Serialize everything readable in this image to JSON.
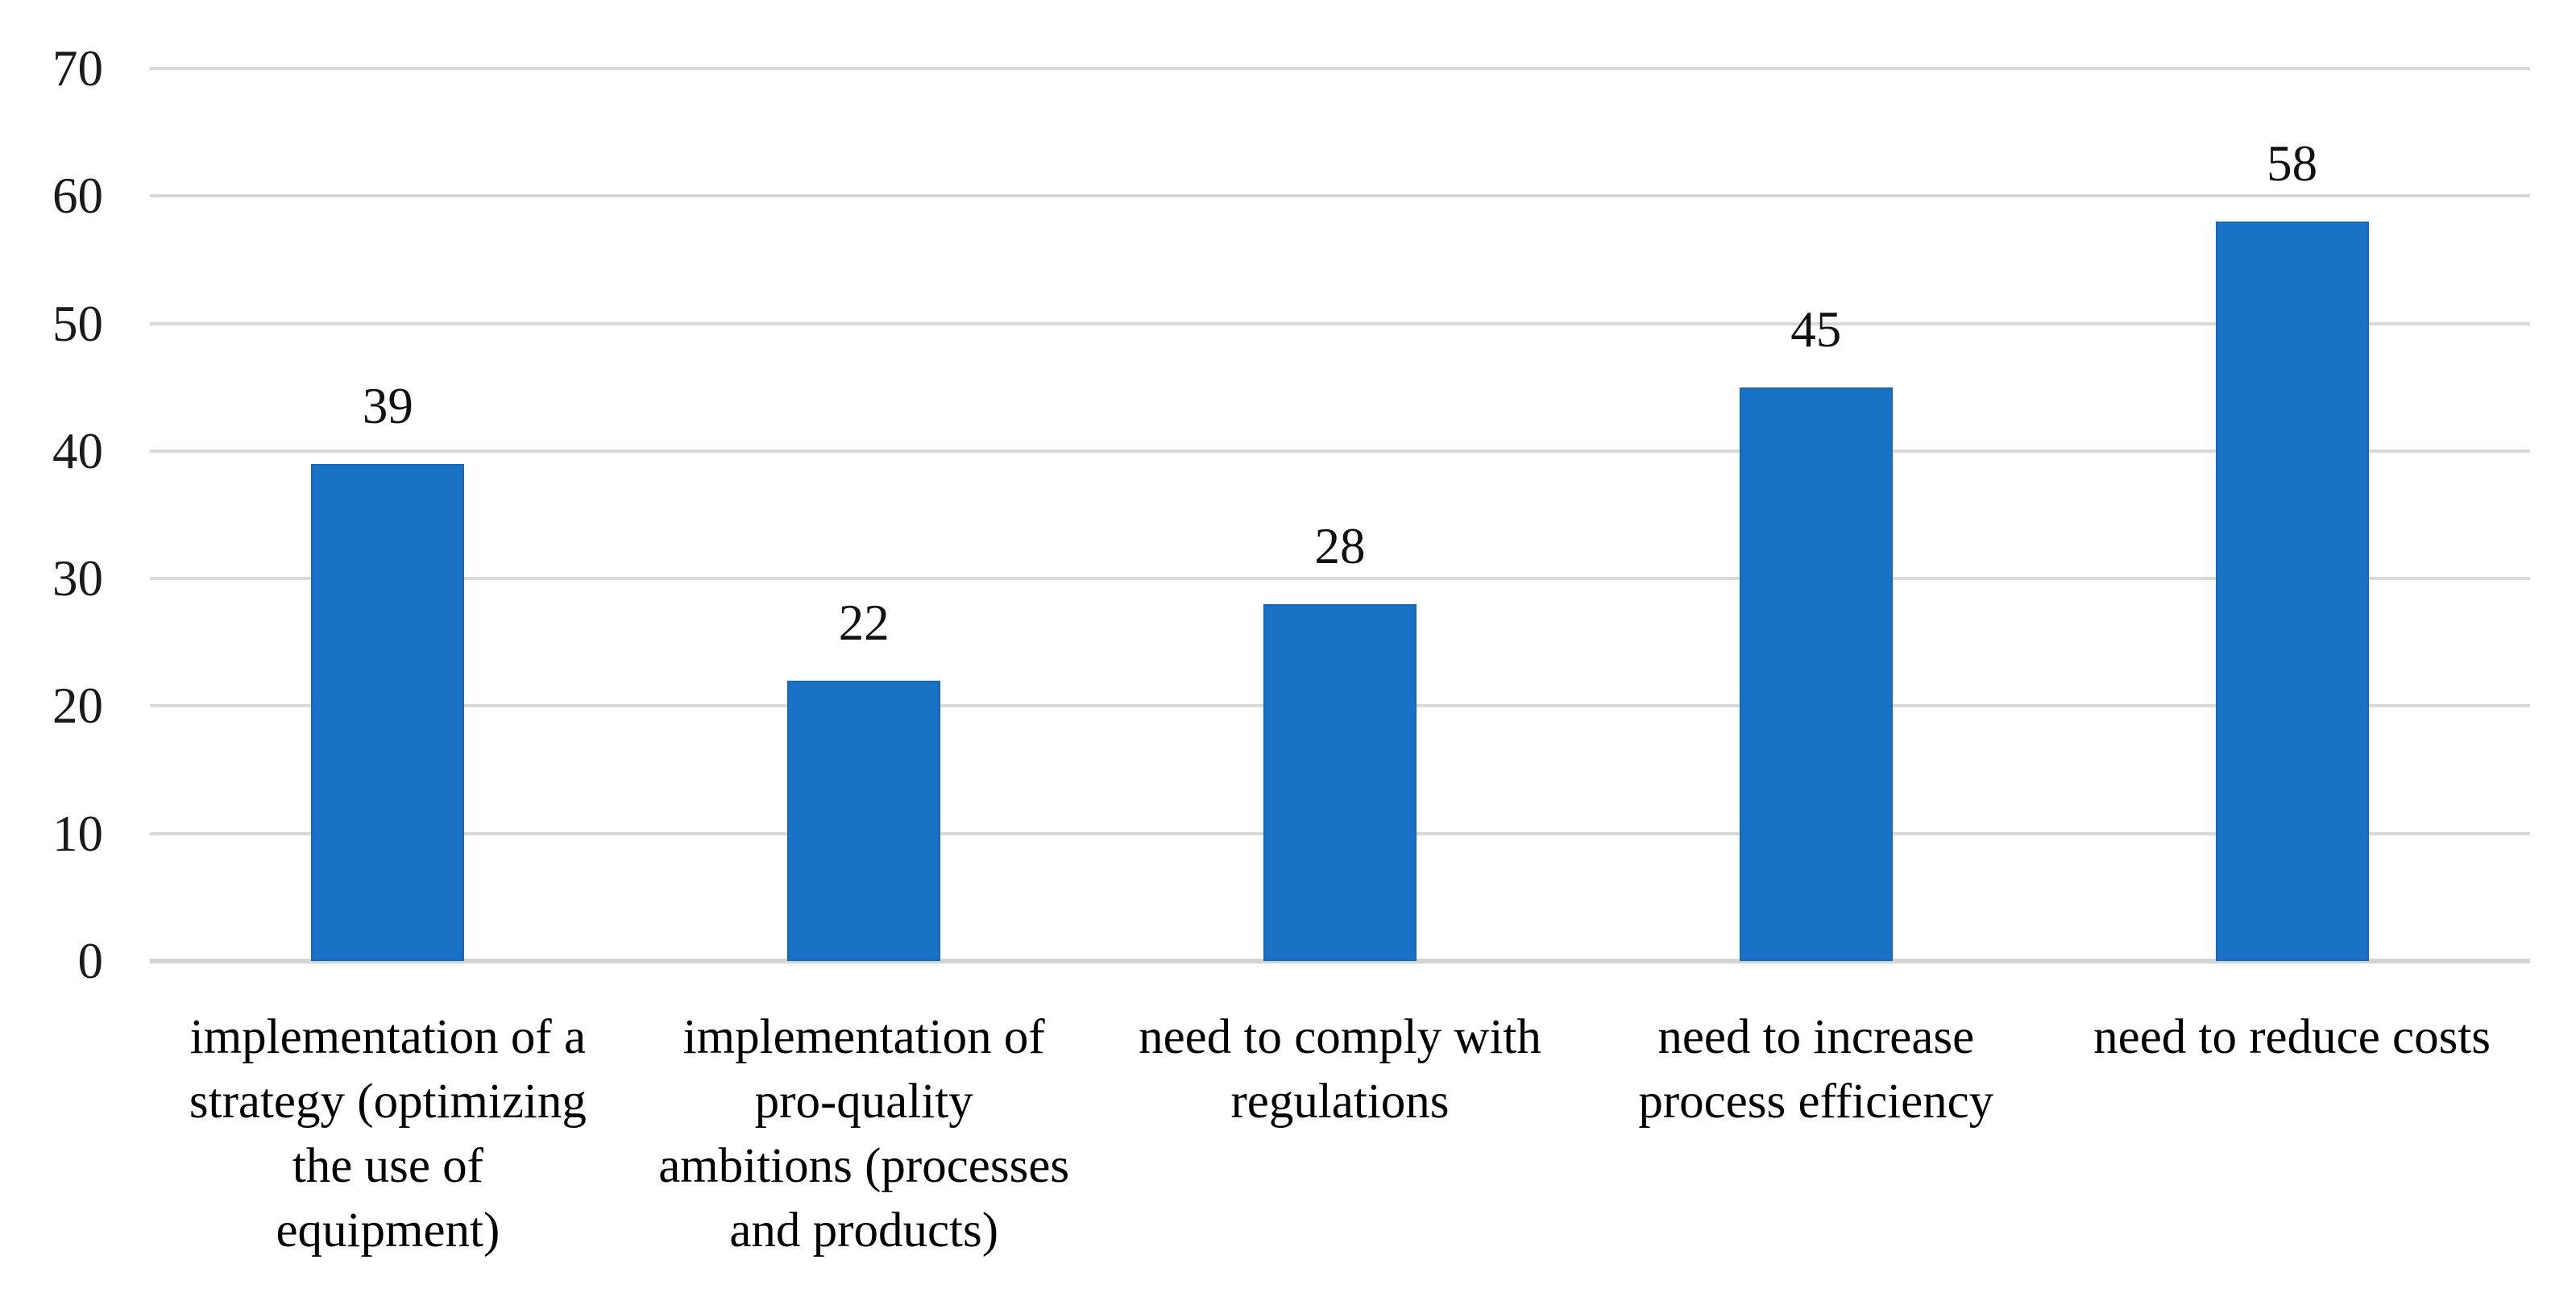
{
  "chart_data": {
    "type": "bar",
    "title": "",
    "xlabel": "",
    "ylabel": "",
    "categories": [
      "implementation of a strategy (optimizing the use of equipment)",
      "implementation of pro-quality ambitions (processes and products)",
      "need to comply with regulations",
      "need to increase process efficiency",
      "need to reduce costs"
    ],
    "category_lines": [
      [
        "implementation of a",
        "strategy (optimizing",
        "the use of",
        "equipment)"
      ],
      [
        "implementation of",
        "pro-quality",
        "ambitions (processes",
        "and products)"
      ],
      [
        "need to comply with",
        "regulations"
      ],
      [
        "need to increase",
        "process efficiency"
      ],
      [
        "need to reduce costs"
      ]
    ],
    "values": [
      39,
      22,
      28,
      45,
      58
    ],
    "y_ticks": [
      0,
      10,
      20,
      30,
      40,
      50,
      60,
      70
    ],
    "ylim": [
      0,
      70
    ],
    "grid": "horizontal-only",
    "legend": "none",
    "bar_color": "#1A72C6",
    "bar_edge_color": "#1667B4",
    "gridline_color": "#D9D9D9",
    "baseline_color": "#D4D4D4",
    "text_color": "#000000",
    "background_color": "#FFFFFF"
  }
}
